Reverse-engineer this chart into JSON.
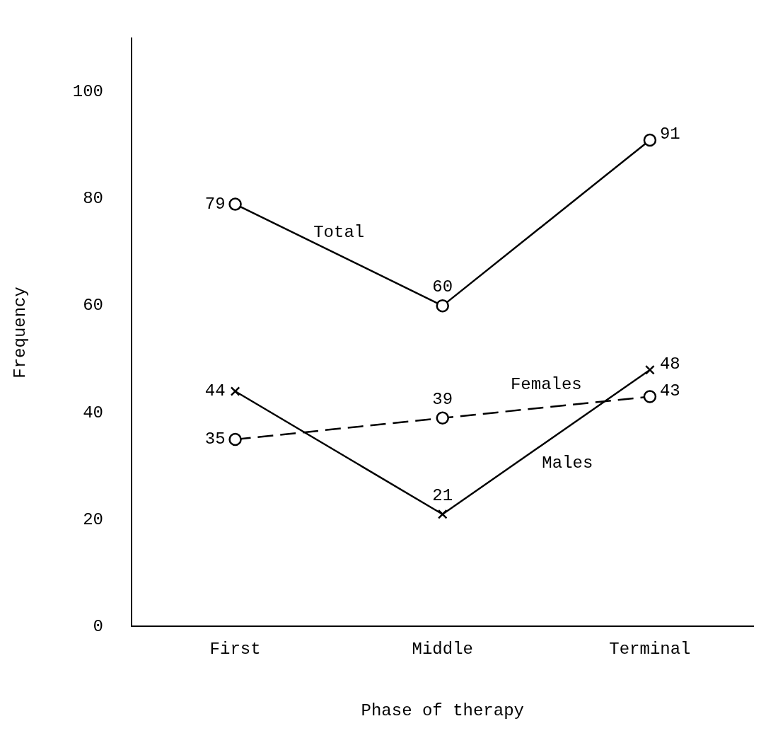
{
  "chart_data": {
    "type": "line",
    "xlabel": "Phase of therapy",
    "ylabel": "Frequency",
    "categories": [
      "First",
      "Middle",
      "Terminal"
    ],
    "ylim": [
      0,
      110
    ],
    "yticks": [
      0,
      20,
      40,
      60,
      80,
      100
    ],
    "grid": false,
    "legend": false,
    "data_labels": true,
    "series": [
      {
        "name": "Total",
        "color": "#000000",
        "values": [
          79,
          60,
          91
        ],
        "marker": "circle",
        "line_style": "solid"
      },
      {
        "name": "Males",
        "color": "#000000",
        "values": [
          44,
          21,
          48
        ],
        "marker": "cross",
        "line_style": "solid"
      },
      {
        "name": "Females",
        "color": "#000000",
        "values": [
          35,
          39,
          43
        ],
        "marker": "circle",
        "line_style": "dashed"
      }
    ]
  }
}
